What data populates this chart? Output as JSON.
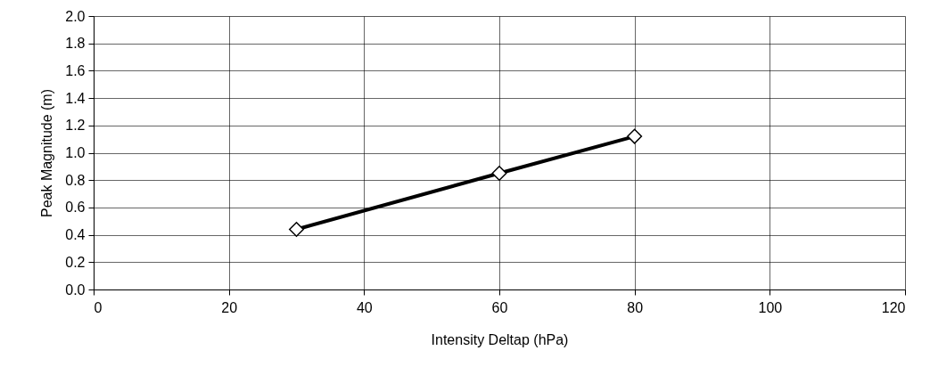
{
  "chart_data": {
    "type": "line",
    "xlabel": "Intensity Deltap (hPa)",
    "ylabel": "Peak Magnitude  (m)",
    "x": [
      30,
      60,
      80
    ],
    "series": [
      {
        "color": "#000000",
        "values": [
          0.44,
          0.85,
          1.12
        ]
      }
    ],
    "xlim": [
      0,
      120
    ],
    "xticks": [
      0,
      20,
      40,
      60,
      80,
      100,
      120
    ],
    "ylim": [
      0,
      2.0
    ],
    "yticks": [
      {
        "value": 0,
        "label": "0.0"
      },
      {
        "value": 0.2,
        "label": "0.2"
      },
      {
        "value": 0.4,
        "label": "0.4"
      },
      {
        "value": 0.6,
        "label": "0.6"
      },
      {
        "value": 0.8,
        "label": "0.8"
      },
      {
        "value": 1.0,
        "label": "1.0"
      },
      {
        "value": 1.2,
        "label": "1.2"
      },
      {
        "value": 1.4,
        "label": "1.4"
      },
      {
        "value": 1.6,
        "label": "1.6"
      },
      {
        "value": 1.8,
        "label": "1.8"
      },
      {
        "value": 2.0,
        "label": "2.0"
      }
    ],
    "grid": true,
    "marker": "diamond",
    "line_style": "solid"
  }
}
